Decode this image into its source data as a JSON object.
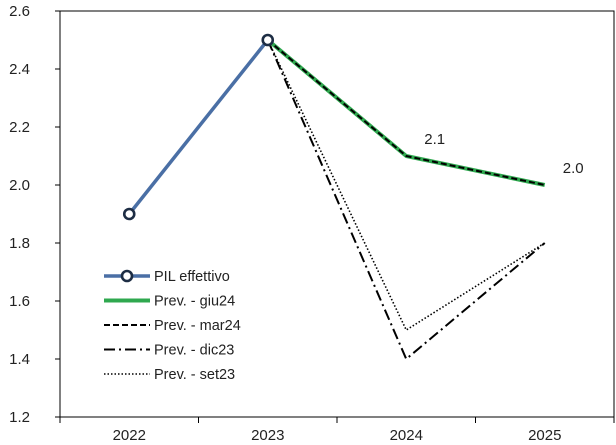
{
  "chart_data": {
    "type": "line",
    "title": "",
    "xlabel": "",
    "ylabel": "",
    "categories": [
      "2022",
      "2023",
      "2024",
      "2025"
    ],
    "ylim": [
      1.2,
      2.6
    ],
    "yticks": [
      "1.2",
      "1.4",
      "1.6",
      "1.8",
      "2.0",
      "2.2",
      "2.4",
      "2.6"
    ],
    "grid": false,
    "legend_position": "bottom-left",
    "series": [
      {
        "name": "PIL effettivo",
        "values": [
          1.9,
          2.5,
          null,
          null
        ],
        "color": "#4a6fa5",
        "style": "solid-markers"
      },
      {
        "name": "Prev. - giu24",
        "values": [
          null,
          2.5,
          2.1,
          2.0
        ],
        "color": "#2fa84f",
        "style": "solid-thick"
      },
      {
        "name": "Prev. - mar24",
        "values": [
          null,
          2.5,
          2.1,
          2.0
        ],
        "color": "#000000",
        "style": "dashed"
      },
      {
        "name": "Prev. - dic23",
        "values": [
          null,
          2.5,
          1.4,
          1.8
        ],
        "color": "#000000",
        "style": "dash-dot"
      },
      {
        "name": "Prev. - set23",
        "values": [
          null,
          2.5,
          1.5,
          1.8
        ],
        "color": "#000000",
        "style": "dotted"
      }
    ],
    "annotations": [
      {
        "series": "Prev. - giu24",
        "category": "2024",
        "text": "2.1"
      },
      {
        "series": "Prev. - giu24",
        "category": "2025",
        "text": "2.0"
      }
    ]
  }
}
